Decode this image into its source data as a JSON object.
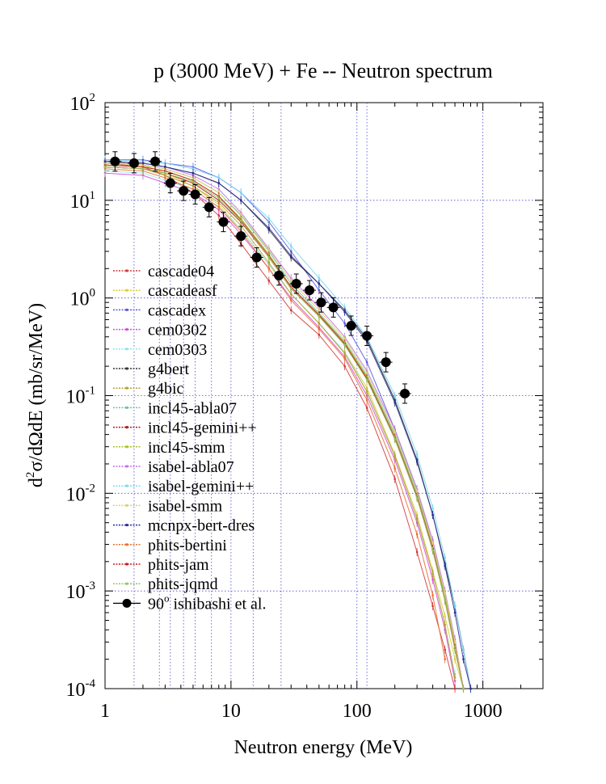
{
  "chart_data": {
    "type": "line",
    "title": "p (3000 MeV) + Fe -- Neutron spectrum",
    "xlabel": "Neutron energy (MeV)",
    "ylabel": "d2σ/dΩdE (mb/sr/MeV)",
    "ylabel_parts": {
      "prefix": "d",
      "sup": "2",
      "rest": "σ/dΩdE (mb/sr/MeV)"
    },
    "xscale": "log",
    "yscale": "log",
    "xlim": [
      1,
      3000
    ],
    "ylim": [
      0.0001,
      100
    ],
    "x_ticks": [
      {
        "value": 1,
        "label": "1"
      },
      {
        "value": 10,
        "label": "10"
      },
      {
        "value": 100,
        "label": "100"
      },
      {
        "value": 1000,
        "label": "1000"
      }
    ],
    "y_ticks": [
      {
        "value": 100,
        "base": "10",
        "exp": "2"
      },
      {
        "value": 10,
        "base": "10",
        "exp": "1"
      },
      {
        "value": 1,
        "base": "10",
        "exp": "0"
      },
      {
        "value": 0.1,
        "base": "10",
        "exp": "-1"
      },
      {
        "value": 0.01,
        "base": "10",
        "exp": "-2"
      },
      {
        "value": 0.001,
        "base": "10",
        "exp": "-3"
      },
      {
        "value": 0.0001,
        "base": "10",
        "exp": "-4"
      }
    ],
    "vertical_grid_x": [
      1.7,
      2.7,
      3.3,
      4.2,
      5.2,
      7.0,
      15,
      25,
      120
    ],
    "legend_position": "left-middle",
    "series": [
      {
        "name": "cascade04",
        "color": "#d23a3a",
        "x": [
          1,
          2,
          3,
          5,
          8,
          12,
          20,
          30,
          50,
          80,
          120,
          200,
          300,
          400,
          500,
          600
        ],
        "y": [
          24,
          22,
          18,
          12,
          7,
          3.6,
          1.5,
          0.75,
          0.42,
          0.2,
          0.075,
          0.014,
          0.0025,
          0.0007,
          0.00025,
          0.0001
        ]
      },
      {
        "name": "cascadeasf",
        "color": "#d9cc3a",
        "x": [
          1,
          2,
          3,
          5,
          8,
          12,
          20,
          30,
          50,
          80,
          120,
          200,
          300,
          400,
          500,
          600,
          700
        ],
        "y": [
          25,
          23,
          19,
          14,
          9,
          5,
          2.2,
          1.1,
          0.55,
          0.28,
          0.12,
          0.025,
          0.006,
          0.0016,
          0.00055,
          0.0002,
          0.0001
        ]
      },
      {
        "name": "cascadex",
        "color": "#5a5ad8",
        "x": [
          1,
          2,
          3,
          5,
          8,
          12,
          20,
          30,
          50,
          80,
          120,
          200,
          300,
          400,
          500,
          600,
          700
        ],
        "y": [
          26,
          26,
          24,
          22,
          17,
          12,
          6,
          3,
          1.2,
          0.55,
          0.22,
          0.045,
          0.011,
          0.003,
          0.0009,
          0.0003,
          0.0001
        ]
      },
      {
        "name": "cem0302",
        "color": "#d84ad8",
        "x": [
          1,
          2,
          3,
          5,
          8,
          12,
          20,
          30,
          50,
          80,
          120,
          200,
          300,
          400,
          500,
          600
        ],
        "y": [
          19,
          18,
          15,
          12,
          8,
          4.5,
          2.0,
          1.0,
          0.5,
          0.25,
          0.1,
          0.022,
          0.005,
          0.0013,
          0.0004,
          0.00012
        ]
      },
      {
        "name": "cem0303",
        "color": "#8ee4ec",
        "x": [
          1,
          2,
          3,
          5,
          8,
          12,
          20,
          30,
          50,
          80,
          120,
          200,
          300,
          400,
          500,
          600
        ],
        "y": [
          20,
          19,
          16,
          13,
          8.5,
          5,
          2.2,
          1.1,
          0.55,
          0.28,
          0.11,
          0.024,
          0.0055,
          0.0015,
          0.00045,
          0.00014
        ]
      },
      {
        "name": "g4bert",
        "color": "#333333",
        "x": [
          1,
          2,
          3,
          5,
          8,
          12,
          20,
          30,
          50,
          80,
          120,
          200,
          300,
          400,
          500,
          600,
          700,
          800
        ],
        "y": [
          25,
          24,
          22,
          19,
          15,
          10,
          5,
          2.6,
          1.4,
          0.75,
          0.38,
          0.09,
          0.022,
          0.006,
          0.0019,
          0.0007,
          0.00025,
          0.0001
        ]
      },
      {
        "name": "g4bic",
        "color": "#b5a030",
        "x": [
          1,
          2,
          3,
          5,
          8,
          12,
          20,
          30,
          50,
          80,
          120,
          200,
          300,
          400,
          500,
          600
        ],
        "y": [
          22,
          21,
          18,
          14,
          9.5,
          5.5,
          2.3,
          1.1,
          0.55,
          0.27,
          0.11,
          0.024,
          0.0055,
          0.0015,
          0.00045,
          0.00013
        ]
      },
      {
        "name": "incl45-abla07",
        "color": "#70c0a0",
        "x": [
          1,
          2,
          3,
          5,
          8,
          12,
          20,
          30,
          50,
          80,
          120,
          200,
          300,
          400,
          500,
          600,
          700
        ],
        "y": [
          24,
          23,
          21,
          17,
          12,
          7,
          3.0,
          1.4,
          0.7,
          0.36,
          0.16,
          0.04,
          0.01,
          0.003,
          0.0009,
          0.0003,
          0.0001
        ]
      },
      {
        "name": "incl45-gemini++",
        "color": "#b01818",
        "x": [
          1,
          2,
          3,
          5,
          8,
          12,
          20,
          30,
          50,
          80,
          120,
          200,
          300,
          400,
          500,
          600,
          700
        ],
        "y": [
          22,
          21,
          19,
          15,
          10,
          6,
          2.6,
          1.25,
          0.65,
          0.33,
          0.15,
          0.036,
          0.009,
          0.0026,
          0.0008,
          0.00026,
          0.0001
        ]
      },
      {
        "name": "incl45-smm",
        "color": "#a8c020",
        "x": [
          1,
          2,
          3,
          5,
          8,
          12,
          20,
          30,
          50,
          80,
          120,
          200,
          300,
          400,
          500,
          600,
          700
        ],
        "y": [
          23,
          22,
          20,
          16,
          11,
          6.5,
          2.8,
          1.3,
          0.68,
          0.35,
          0.155,
          0.038,
          0.0095,
          0.0028,
          0.00085,
          0.00028,
          0.0001
        ]
      },
      {
        "name": "isabel-abla07",
        "color": "#c070e8",
        "x": [
          1,
          2,
          3,
          5,
          8,
          12,
          20,
          30,
          50,
          80,
          120,
          200,
          300,
          400,
          500,
          600,
          700
        ],
        "y": [
          25,
          24,
          22,
          18,
          13,
          7.5,
          3.2,
          1.6,
          0.8,
          0.4,
          0.18,
          0.045,
          0.011,
          0.0033,
          0.001,
          0.00032,
          0.0001
        ]
      },
      {
        "name": "isabel-gemini++",
        "color": "#7ad8f0",
        "x": [
          1,
          2,
          3,
          5,
          8,
          12,
          20,
          30,
          50,
          80,
          120,
          200,
          300,
          400,
          500,
          600,
          700,
          800
        ],
        "y": [
          26,
          25,
          24,
          21,
          17,
          12,
          6.5,
          3.4,
          1.6,
          0.8,
          0.4,
          0.1,
          0.025,
          0.007,
          0.0022,
          0.0007,
          0.00025,
          0.0001
        ]
      },
      {
        "name": "isabel-smm",
        "color": "#e0d070",
        "x": [
          1,
          2,
          3,
          5,
          8,
          12,
          20,
          30,
          50,
          80,
          120,
          200,
          300,
          400,
          500,
          600,
          700
        ],
        "y": [
          24,
          23,
          21,
          17,
          12,
          7.2,
          3.1,
          1.5,
          0.75,
          0.38,
          0.17,
          0.042,
          0.0105,
          0.003,
          0.00095,
          0.0003,
          0.0001
        ]
      },
      {
        "name": "mcnpx-bert-dres",
        "color": "#2a2a9a",
        "x": [
          1,
          2,
          3,
          5,
          8,
          12,
          20,
          30,
          50,
          80,
          120,
          200,
          300,
          400,
          500,
          600,
          700,
          800
        ],
        "y": [
          25,
          24,
          22,
          19,
          15,
          10,
          5.2,
          2.7,
          1.4,
          0.72,
          0.36,
          0.085,
          0.021,
          0.006,
          0.0018,
          0.0006,
          0.0002,
          0.0001
        ]
      },
      {
        "name": "phits-bertini",
        "color": "#e87030",
        "x": [
          1,
          2,
          3,
          5,
          8,
          12,
          20,
          30,
          50,
          80,
          120,
          200,
          300,
          400,
          500
        ],
        "y": [
          21,
          20,
          17,
          13,
          8.5,
          4.8,
          2.0,
          0.95,
          0.48,
          0.24,
          0.09,
          0.018,
          0.0038,
          0.0009,
          0.0002
        ]
      },
      {
        "name": "phits-jam",
        "color": "#c81818",
        "x": [
          1,
          2,
          3,
          5,
          8,
          12,
          20,
          30,
          50,
          80,
          120,
          200,
          300,
          400,
          500,
          600,
          700
        ],
        "y": [
          23,
          22,
          20,
          16,
          11,
          6.3,
          2.7,
          1.3,
          0.67,
          0.34,
          0.15,
          0.037,
          0.0092,
          0.0027,
          0.0008,
          0.00026,
          0.0001
        ]
      },
      {
        "name": "phits-jqmd",
        "color": "#90c860",
        "x": [
          1,
          2,
          3,
          5,
          8,
          12,
          20,
          30,
          50,
          80,
          120,
          200,
          300,
          400,
          500,
          600,
          700
        ],
        "y": [
          22,
          21,
          19,
          15.5,
          10.5,
          6.2,
          2.6,
          1.25,
          0.65,
          0.33,
          0.145,
          0.036,
          0.009,
          0.0026,
          0.0008,
          0.00025,
          0.0001
        ]
      }
    ],
    "experiment": {
      "name": "90o ishibashi et al.",
      "label_sup": "o",
      "label_prefix": "90",
      "label_rest": " ishibashi et al.",
      "color": "#000000",
      "x": [
        1.2,
        1.7,
        2.5,
        3.3,
        4.2,
        5.2,
        6.7,
        8.7,
        12,
        16,
        24,
        33,
        42,
        52,
        65,
        90,
        120,
        170,
        240
      ],
      "y": [
        25,
        24,
        25,
        15,
        12.5,
        11.5,
        8.5,
        6.0,
        4.3,
        2.6,
        1.7,
        1.4,
        1.2,
        0.9,
        0.8,
        0.52,
        0.41,
        0.22,
        0.105
      ]
    }
  }
}
